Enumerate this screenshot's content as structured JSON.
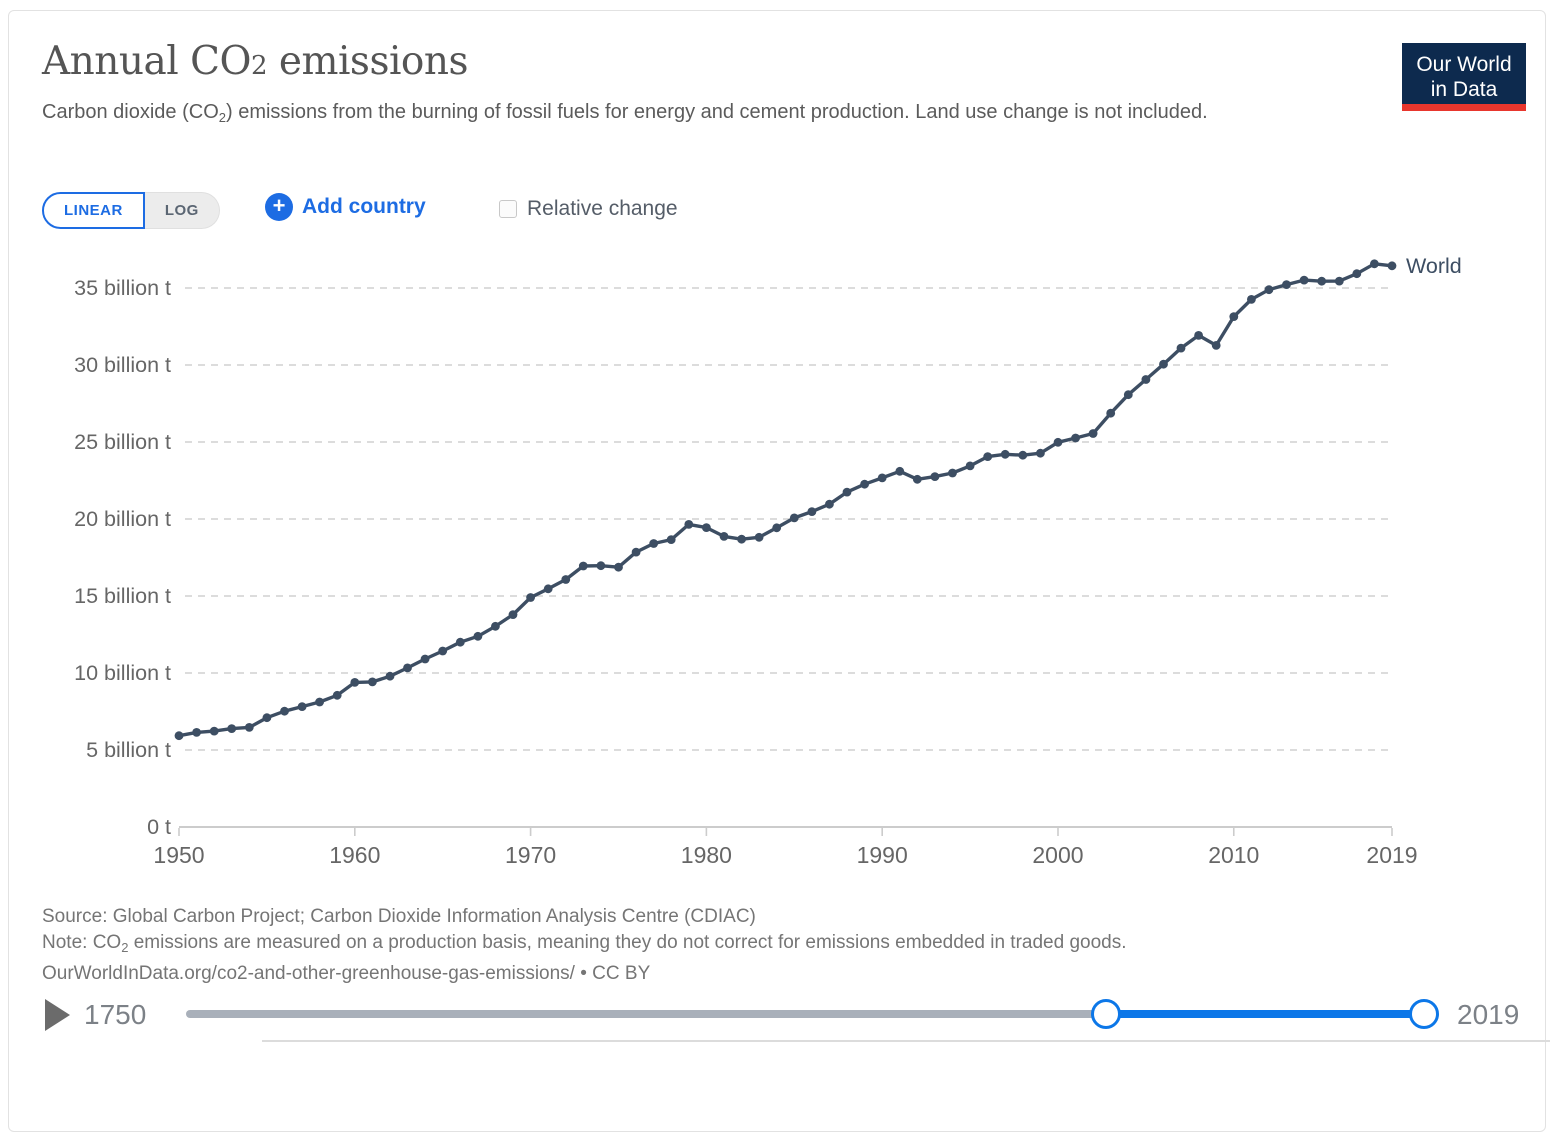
{
  "header": {
    "title": {
      "pre": "Annual CO",
      "sub": "2",
      "post": " emissions"
    },
    "subtitle": {
      "pre": "Carbon dioxide (CO",
      "sub": "2",
      "post": ") emissions from the burning of fossil fuels for energy and cement production. Land use change is not included."
    },
    "logo": {
      "line1": "Our World",
      "line2": "in Data",
      "bg_color": "#0d2a4e",
      "bar_color": "#e8362d"
    }
  },
  "controls": {
    "linear_label": "LINEAR",
    "log_label": "LOG",
    "plus_icon": "+",
    "add_country_label": "Add country",
    "relative_change_label": "Relative change",
    "accent_color": "#1d6ce3"
  },
  "chart_data": {
    "type": "line",
    "title": "Annual CO2 emissions",
    "xlabel": "",
    "ylabel": "",
    "xlim": [
      1950,
      2019
    ],
    "ylim": [
      0,
      37.5
    ],
    "grid": "horizontal-dashed",
    "legend_position": "end-of-line-label",
    "x_ticks": [
      1950,
      1960,
      1970,
      1980,
      1990,
      2000,
      2010,
      2019
    ],
    "y_ticks": [
      {
        "value": 0,
        "label": "0 t"
      },
      {
        "value": 5,
        "label": "5 billion t"
      },
      {
        "value": 10,
        "label": "10 billion t"
      },
      {
        "value": 15,
        "label": "15 billion t"
      },
      {
        "value": 20,
        "label": "20 billion t"
      },
      {
        "value": 25,
        "label": "25 billion t"
      },
      {
        "value": 30,
        "label": "30 billion t"
      },
      {
        "value": 35,
        "label": "35 billion t"
      }
    ],
    "series": [
      {
        "name": "World",
        "color": "#3d4e63",
        "unit": "billion t",
        "x": [
          1950,
          1951,
          1952,
          1953,
          1954,
          1955,
          1956,
          1957,
          1958,
          1959,
          1960,
          1961,
          1962,
          1963,
          1964,
          1965,
          1966,
          1967,
          1968,
          1969,
          1970,
          1971,
          1972,
          1973,
          1974,
          1975,
          1976,
          1977,
          1978,
          1979,
          1980,
          1981,
          1982,
          1983,
          1984,
          1985,
          1986,
          1987,
          1988,
          1989,
          1990,
          1991,
          1992,
          1993,
          1994,
          1995,
          1996,
          1997,
          1998,
          1999,
          2000,
          2001,
          2002,
          2003,
          2004,
          2005,
          2006,
          2007,
          2008,
          2009,
          2010,
          2011,
          2012,
          2013,
          2014,
          2015,
          2016,
          2017,
          2018,
          2019
        ],
        "values": [
          5.93,
          6.14,
          6.23,
          6.39,
          6.47,
          7.1,
          7.52,
          7.82,
          8.12,
          8.55,
          9.39,
          9.42,
          9.79,
          10.33,
          10.91,
          11.43,
          12.0,
          12.38,
          13.03,
          13.79,
          14.9,
          15.47,
          16.07,
          16.95,
          16.97,
          16.87,
          17.85,
          18.41,
          18.66,
          19.65,
          19.44,
          18.87,
          18.69,
          18.81,
          19.43,
          20.07,
          20.48,
          20.96,
          21.75,
          22.26,
          22.67,
          23.1,
          22.58,
          22.75,
          22.99,
          23.45,
          24.05,
          24.2,
          24.14,
          24.27,
          24.98,
          25.26,
          25.55,
          26.87,
          28.07,
          29.06,
          30.05,
          31.1,
          31.92,
          31.27,
          33.14,
          34.26,
          34.89,
          35.22,
          35.51,
          35.44,
          35.45,
          35.93,
          36.57,
          36.44
        ]
      }
    ],
    "end_label": "World"
  },
  "footer": {
    "source": "Source: Global Carbon Project; Carbon Dioxide Information Analysis Centre (CDIAC)",
    "note": {
      "pre": "Note: CO",
      "sub": "2",
      "post": " emissions are measured on a production basis, meaning they do not correct for emissions embedded in traded goods."
    },
    "url": "OurWorldInData.org/co2-and-other-greenhouse-gas-emissions/ • CC BY"
  },
  "timeline": {
    "start_label": "1750",
    "end_label": "2019",
    "range": [
      1750,
      2019
    ],
    "selected_range": [
      1950,
      2019
    ],
    "track_color": "#a9b0ba",
    "active_color": "#0c77e8"
  }
}
